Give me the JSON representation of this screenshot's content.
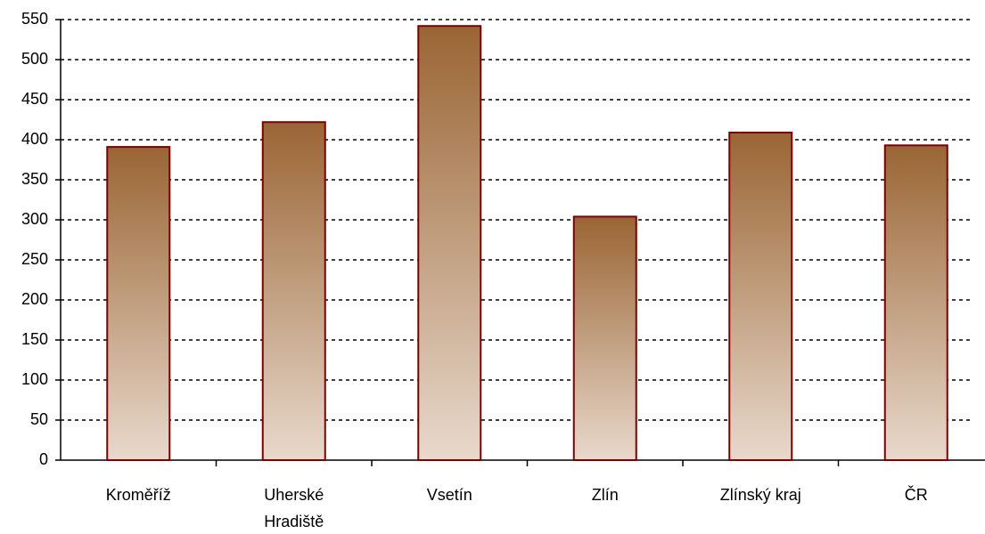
{
  "chart_data": {
    "type": "bar",
    "categories": [
      "Kroměříž",
      "Uherské Hradiště",
      "Vsetín",
      "Zlín",
      "Zlínský kraj",
      "ČR"
    ],
    "values": [
      391,
      422,
      542,
      304,
      409,
      393
    ],
    "gradient": [
      "#9a6534",
      "#e8d9cc"
    ],
    "edge_color": "#800000",
    "ylim": [
      0,
      550
    ],
    "yticks": [
      0,
      50,
      100,
      150,
      200,
      250,
      300,
      350,
      400,
      450,
      500,
      550
    ],
    "grid": true
  }
}
